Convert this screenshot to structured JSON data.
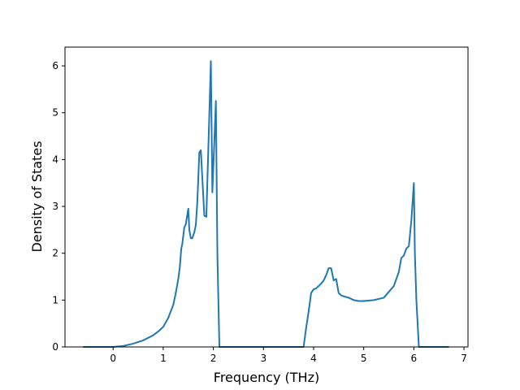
{
  "chart_data": {
    "type": "line",
    "title": "",
    "xlabel": "Frequency (THz)",
    "ylabel": "Density of States",
    "xlim": [
      -0.96,
      7.08
    ],
    "ylim": [
      0,
      6.4
    ],
    "xticks": [
      0,
      1,
      2,
      3,
      4,
      5,
      6,
      7
    ],
    "yticks": [
      0,
      1,
      2,
      3,
      4,
      5,
      6
    ],
    "grid": false,
    "legend": "none",
    "line_color": "#1f77b4",
    "series": [
      {
        "x": [
          -0.6,
          0.0,
          0.2,
          0.4,
          0.6,
          0.8,
          0.9,
          1.0,
          1.1,
          1.2,
          1.25,
          1.3,
          1.33,
          1.36,
          1.38,
          1.42,
          1.45,
          1.5,
          1.52,
          1.55,
          1.58,
          1.62,
          1.65,
          1.68,
          1.72,
          1.75,
          1.78,
          1.82,
          1.86,
          1.9,
          1.95,
          1.98,
          2.02,
          2.05,
          2.08,
          2.12,
          2.15,
          3.6,
          3.8,
          3.85,
          3.9,
          3.95,
          4.0,
          4.05,
          4.1,
          4.15,
          4.2,
          4.25,
          4.3,
          4.35,
          4.4,
          4.45,
          4.5,
          4.55,
          4.6,
          4.7,
          4.8,
          4.9,
          5.0,
          5.2,
          5.4,
          5.6,
          5.7,
          5.75,
          5.8,
          5.85,
          5.9,
          5.95,
          6.0,
          6.02,
          6.05,
          6.1,
          6.2,
          6.7
        ],
        "y": [
          0.0,
          0.0,
          0.02,
          0.07,
          0.14,
          0.25,
          0.33,
          0.43,
          0.62,
          0.9,
          1.15,
          1.45,
          1.7,
          2.1,
          2.2,
          2.55,
          2.62,
          2.95,
          2.5,
          2.32,
          2.32,
          2.45,
          2.6,
          3.1,
          4.15,
          4.2,
          3.6,
          2.8,
          2.78,
          4.25,
          6.1,
          3.3,
          4.4,
          5.25,
          2.0,
          0.0,
          0.0,
          0.0,
          0.0,
          0.4,
          0.75,
          1.15,
          1.23,
          1.25,
          1.3,
          1.35,
          1.42,
          1.53,
          1.68,
          1.68,
          1.42,
          1.45,
          1.15,
          1.1,
          1.08,
          1.05,
          1.0,
          0.98,
          0.98,
          1.0,
          1.05,
          1.3,
          1.6,
          1.9,
          1.95,
          2.1,
          2.15,
          2.7,
          3.5,
          2.0,
          1.0,
          0.0,
          0.0,
          0.0
        ]
      }
    ]
  }
}
